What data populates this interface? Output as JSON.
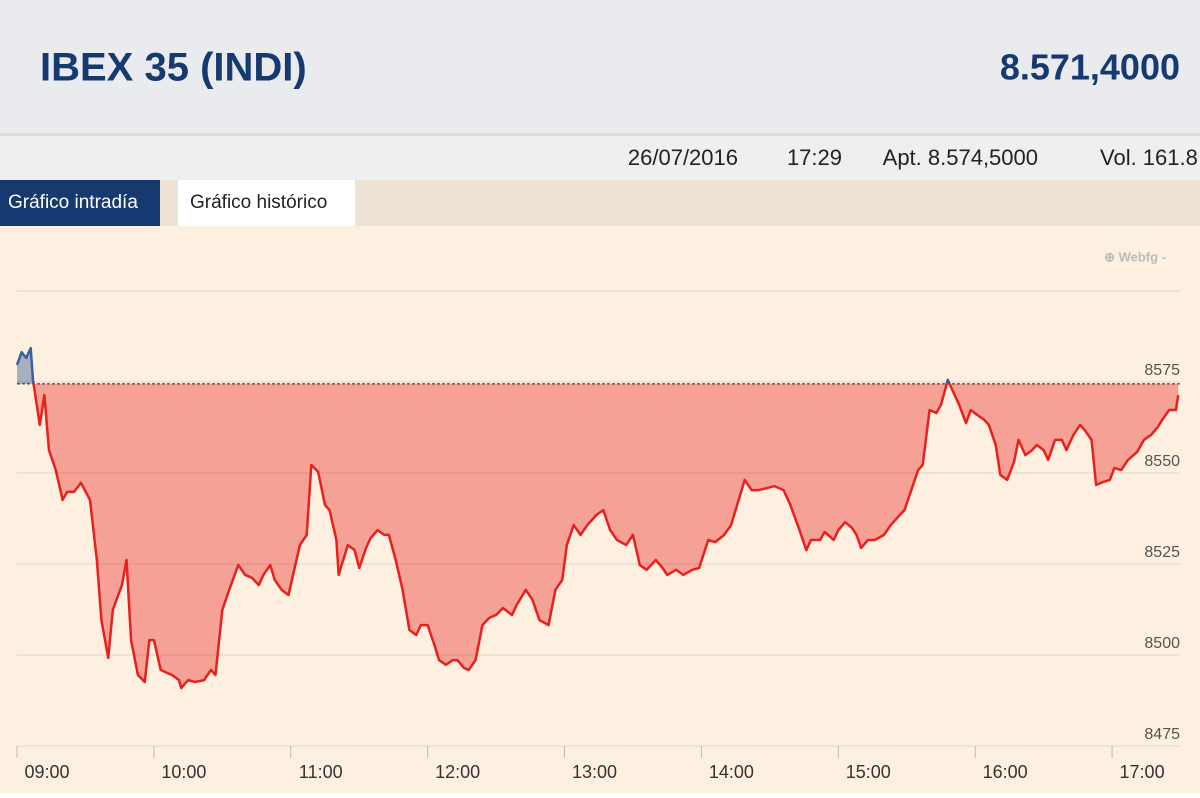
{
  "header": {
    "title": "IBEX 35 (INDI)",
    "price": "8.571,4000"
  },
  "info": {
    "date": "26/07/2016",
    "time": "17:29",
    "close": "Apt. 8.574,5000",
    "volume": "Vol. 161.8"
  },
  "tabs": [
    "Gráfico intradía",
    "Gráfico histórico"
  ],
  "chart_data": {
    "type": "line",
    "source": "⊕ Webfg -",
    "color": "#e8201e",
    "color_above": "#3a5f9a",
    "reference": 8574.5,
    "xlim": [
      "09:00",
      "17:30"
    ],
    "xticks": [
      "09:00",
      "10:00",
      "11:00",
      "12:00",
      "13:00",
      "14:00",
      "15:00",
      "16:00",
      "17:00"
    ],
    "ylim": [
      8475,
      8600
    ],
    "yticks": [
      8475,
      8500,
      8525,
      8550,
      8575
    ],
    "grid": true,
    "x": [
      "09:00",
      "09:02",
      "09:04",
      "09:06",
      "09:07",
      "09:10",
      "09:12",
      "09:14",
      "09:17",
      "09:20",
      "09:22",
      "09:25",
      "09:28",
      "09:32",
      "09:35",
      "09:37",
      "09:40",
      "09:42",
      "09:46",
      "09:48",
      "09:50",
      "09:53",
      "09:56",
      "09:58",
      "10:00",
      "10:03",
      "10:05",
      "10:08",
      "10:11",
      "10:12",
      "10:15",
      "10:18",
      "10:22",
      "10:25",
      "10:27",
      "10:30",
      "10:33",
      "10:37",
      "10:40",
      "10:43",
      "10:46",
      "10:48",
      "10:51",
      "10:53",
      "10:56",
      "10:59",
      "11:01",
      "11:04",
      "11:07",
      "11:09",
      "11:12",
      "11:15",
      "11:17",
      "11:20",
      "11:21",
      "11:25",
      "11:28",
      "11:30",
      "11:33",
      "11:35",
      "11:38",
      "11:41",
      "11:43",
      "11:46",
      "11:49",
      "11:52",
      "11:55",
      "11:57",
      "12:00",
      "12:03",
      "12:05",
      "12:08",
      "12:11",
      "12:13",
      "12:16",
      "12:18",
      "12:21",
      "12:24",
      "12:27",
      "12:30",
      "12:33",
      "12:37",
      "12:39",
      "12:43",
      "12:46",
      "12:49",
      "12:53",
      "12:56",
      "12:59",
      "13:01",
      "13:04",
      "13:07",
      "13:10",
      "13:14",
      "13:17",
      "13:20",
      "13:23",
      "13:27",
      "13:30",
      "13:33",
      "13:36",
      "13:40",
      "13:43",
      "13:45",
      "13:49",
      "13:52",
      "13:56",
      "13:59",
      "14:03",
      "14:06",
      "14:10",
      "14:13",
      "14:17",
      "14:19",
      "14:22",
      "14:25",
      "14:29",
      "14:32",
      "14:36",
      "14:39",
      "14:43",
      "14:46",
      "14:48",
      "14:52",
      "14:54",
      "14:58",
      "15:00",
      "15:03",
      "15:06",
      "15:08",
      "15:10",
      "15:13",
      "15:16",
      "15:20",
      "15:23",
      "15:27",
      "15:29",
      "15:32",
      "15:35",
      "15:37",
      "15:40",
      "15:43",
      "15:45",
      "15:48",
      "15:50",
      "15:53",
      "15:56",
      "15:58",
      "16:01",
      "16:04",
      "16:06",
      "16:09",
      "16:11",
      "16:14",
      "16:17",
      "16:19",
      "16:22",
      "16:25",
      "16:27",
      "16:30",
      "16:32",
      "16:35",
      "16:38",
      "16:40",
      "16:43",
      "16:46",
      "16:48",
      "16:51",
      "16:53",
      "16:56",
      "16:59",
      "17:01",
      "17:04",
      "17:07",
      "17:11",
      "17:14",
      "17:17",
      "17:20",
      "17:22",
      "17:25",
      "17:28",
      "17:29"
    ],
    "values": [
      8579.7,
      8583.2,
      8581.6,
      8584.3,
      8575.6,
      8563.2,
      8571.4,
      8556.3,
      8550.8,
      8542.6,
      8544.8,
      8544.8,
      8547.3,
      8542.6,
      8526.1,
      8509.6,
      8499.2,
      8512.4,
      8519.2,
      8526.1,
      8504.1,
      8494.5,
      8492.6,
      8504.1,
      8504.1,
      8495.9,
      8495.3,
      8494.5,
      8493.1,
      8490.9,
      8493.1,
      8492.6,
      8493.1,
      8495.9,
      8494.5,
      8512.4,
      8517.9,
      8524.7,
      8522.0,
      8521.2,
      8519.2,
      8522.0,
      8524.7,
      8520.6,
      8517.9,
      8516.5,
      8522.0,
      8530.2,
      8533.0,
      8552.2,
      8550.3,
      8541.2,
      8539.8,
      8531.6,
      8522.0,
      8530.2,
      8528.8,
      8523.9,
      8529.4,
      8532.1,
      8534.3,
      8533.0,
      8533.0,
      8526.1,
      8517.9,
      8506.9,
      8505.5,
      8508.2,
      8508.2,
      8502.7,
      8498.6,
      8497.3,
      8498.6,
      8498.6,
      8496.4,
      8495.9,
      8498.6,
      8508.2,
      8510.2,
      8511.0,
      8512.9,
      8511.0,
      8513.7,
      8517.9,
      8515.1,
      8509.6,
      8508.2,
      8517.9,
      8520.6,
      8530.2,
      8535.7,
      8533.0,
      8535.7,
      8538.5,
      8539.8,
      8534.3,
      8531.6,
      8530.2,
      8533.0,
      8524.7,
      8523.4,
      8526.1,
      8523.9,
      8522.0,
      8523.4,
      8522.0,
      8523.4,
      8523.9,
      8531.6,
      8531.0,
      8533.0,
      8535.7,
      8544.0,
      8548.1,
      8545.3,
      8545.3,
      8545.9,
      8546.4,
      8545.3,
      8541.2,
      8534.3,
      8528.8,
      8531.6,
      8531.6,
      8533.8,
      8531.6,
      8534.3,
      8536.5,
      8534.9,
      8533.0,
      8529.4,
      8531.6,
      8531.6,
      8533.0,
      8535.7,
      8538.5,
      8539.8,
      8545.3,
      8550.8,
      8552.2,
      8567.3,
      8566.5,
      8568.7,
      8575.6,
      8572.8,
      8568.7,
      8563.7,
      8567.3,
      8565.9,
      8564.6,
      8563.2,
      8557.7,
      8549.5,
      8548.1,
      8553.0,
      8559.1,
      8554.9,
      8556.3,
      8557.7,
      8556.3,
      8553.6,
      8559.1,
      8559.1,
      8556.3,
      8560.4,
      8563.2,
      8561.8,
      8559.1,
      8546.7,
      8547.5,
      8548.1,
      8551.4,
      8550.8,
      8553.6,
      8555.8,
      8559.1,
      8560.4,
      8562.6,
      8564.6,
      8567.3,
      8567.3,
      8571.4
    ]
  }
}
